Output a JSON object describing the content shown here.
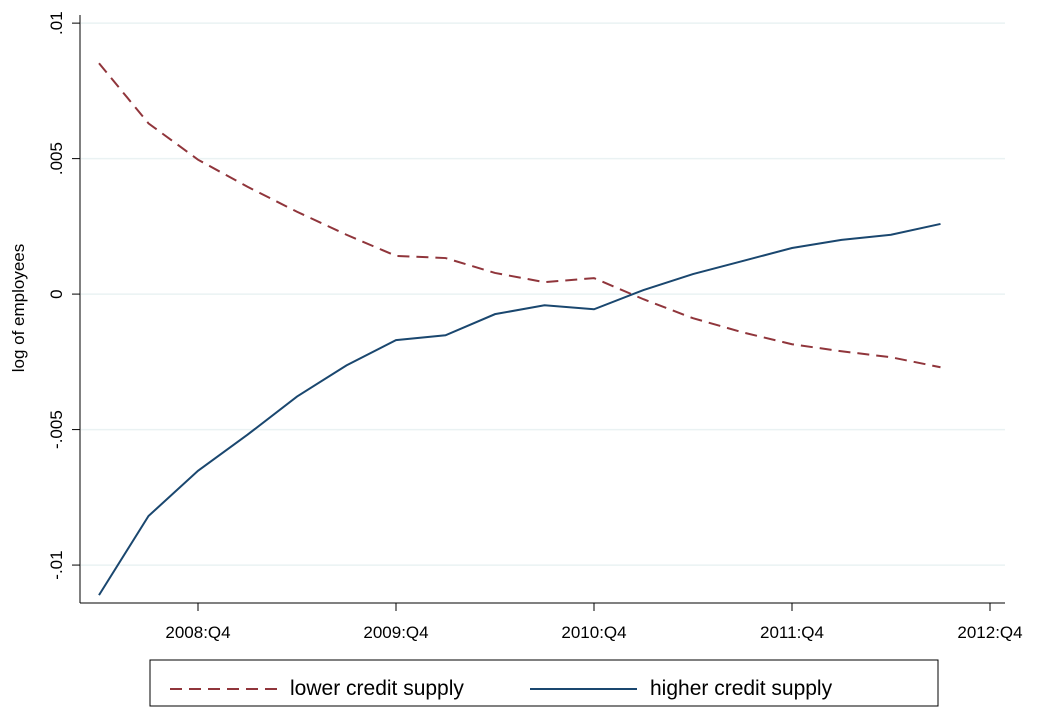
{
  "chart_data": {
    "type": "line",
    "y_label": "log of employees",
    "categories": [
      null,
      null,
      "2008:Q4",
      null,
      null,
      null,
      "2009:Q4",
      null,
      null,
      null,
      "2010:Q4",
      null,
      null,
      null,
      "2011:Q4",
      null,
      null,
      null,
      "2012:Q4"
    ],
    "series": [
      {
        "name": "lower credit supply",
        "color": "#90353b",
        "dash": true,
        "values": [
          0.00852,
          0.0063,
          0.00496,
          0.00396,
          0.00304,
          0.00219,
          0.00141,
          0.00133,
          0.00078,
          0.00044,
          0.00059,
          -0.00019,
          -0.00089,
          -0.00141,
          -0.00185,
          -0.00211,
          -0.00233,
          -0.0027,
          null
        ]
      },
      {
        "name": "higher credit supply",
        "color": "#1a476f",
        "dash": false,
        "values": [
          -0.01111,
          -0.00819,
          -0.00652,
          -0.00519,
          -0.00378,
          -0.00263,
          -0.0017,
          -0.00152,
          -0.00074,
          -0.00041,
          -0.00056,
          0.00015,
          0.00074,
          0.00122,
          0.0017,
          0.002,
          0.00219,
          0.00259,
          null
        ]
      }
    ],
    "ylim": [
      -0.0114,
      0.0103
    ],
    "yticks": [
      {
        "value": -0.01,
        "label": "-.01"
      },
      {
        "value": -0.005,
        "label": "-.005"
      },
      0,
      {
        "value": 0.005,
        "label": ".005"
      },
      {
        "value": 0.01,
        "label": ".01"
      }
    ],
    "grid": true
  }
}
